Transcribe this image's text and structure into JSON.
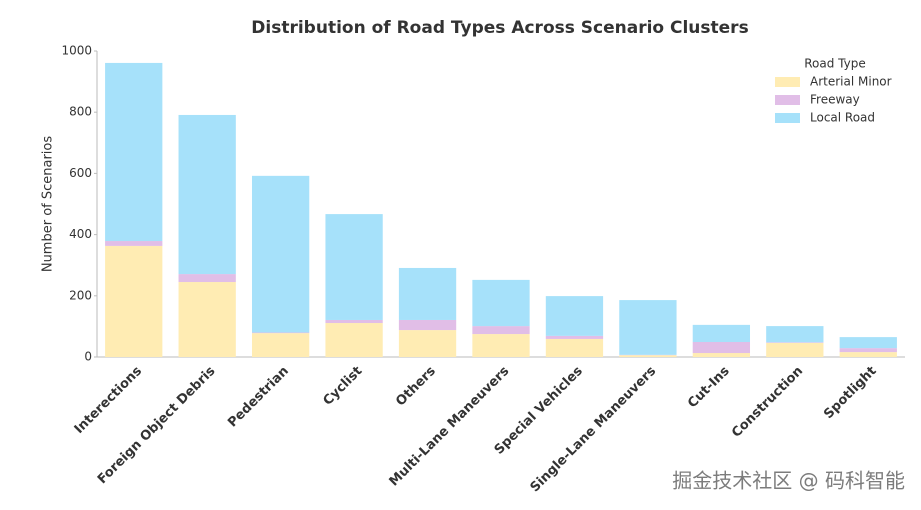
{
  "chart_data": {
    "type": "stacked-bar",
    "title": "Distribution of Road Types Across Scenario Clusters",
    "y_label": "Number of Scenarios",
    "categories": [
      "Interections",
      "Foreign Object Debris",
      "Pedestrian",
      "Cyclist",
      "Others",
      "Multi-Lane Maneuvers",
      "Special Vehicles",
      "Single-Lane Maneuvers",
      "Cut-Ins",
      "Construction",
      "Spotlight"
    ],
    "series": [
      {
        "name": "Arterial Minor",
        "color": "#ffecb3",
        "values": [
          363,
          245,
          78,
          111,
          88,
          75,
          59,
          6,
          13,
          46,
          16
        ]
      },
      {
        "name": "Freeway",
        "color": "#e1bee7",
        "values": [
          16,
          26,
          2,
          10,
          33,
          26,
          10,
          1,
          36,
          2,
          13
        ]
      },
      {
        "name": "Local Road",
        "color": "#a6e1fa",
        "values": [
          582,
          520,
          512,
          346,
          170,
          151,
          130,
          179,
          56,
          53,
          36
        ]
      }
    ],
    "legend_title": "Road Type",
    "legend_position": "upper right",
    "ylim": [
      0,
      1000
    ],
    "yticks": [
      0,
      200,
      400,
      600,
      800,
      1000
    ]
  },
  "watermark": "掘金技术社区 @ 码科智能"
}
